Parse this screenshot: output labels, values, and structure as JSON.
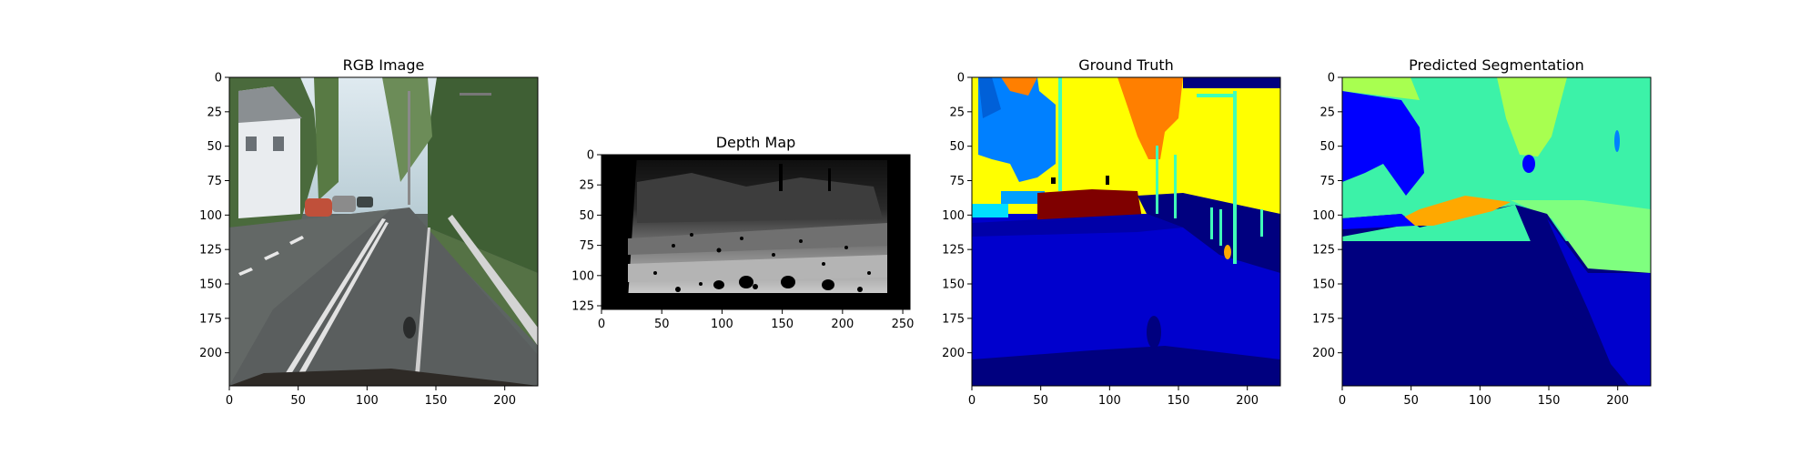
{
  "chart_data": [
    {
      "type": "image",
      "title": "RGB Image",
      "xlim": [
        0,
        224
      ],
      "ylim": [
        224,
        0
      ],
      "xticks": [
        0,
        50,
        100,
        150,
        200
      ],
      "yticks": [
        0,
        25,
        50,
        75,
        100,
        125,
        150,
        175,
        200
      ],
      "colors": {
        "sky": "#cfe0e8",
        "trees": "#4d6a3a",
        "road": "#5b5f5f",
        "building": "#e4e6e8",
        "car": "#c0503a"
      }
    },
    {
      "type": "image",
      "title": "Depth Map",
      "colormap": "gray",
      "xlim": [
        0,
        256
      ],
      "ylim": [
        128,
        0
      ],
      "xticks": [
        0,
        50,
        100,
        150,
        200,
        250
      ],
      "yticks": [
        0,
        25,
        50,
        75,
        100,
        125
      ]
    },
    {
      "type": "image",
      "title": "Ground Truth",
      "colormap": "jet",
      "xlim": [
        0,
        224
      ],
      "ylim": [
        224,
        0
      ],
      "xticks": [
        0,
        50,
        100,
        150,
        200
      ],
      "yticks": [
        0,
        25,
        50,
        75,
        100,
        125,
        150,
        175,
        200
      ],
      "colors": {
        "road": "#0000cd",
        "background": "#00007f",
        "sky": "#ffff00",
        "trees": "#0080ff",
        "building": "#ff7f00",
        "car": "#7f0000",
        "pole": "#40ffb8"
      }
    },
    {
      "type": "image",
      "title": "Predicted Segmentation",
      "colormap": "jet",
      "xlim": [
        0,
        224
      ],
      "ylim": [
        224,
        0
      ],
      "xticks": [
        0,
        50,
        100,
        150,
        200
      ],
      "yticks": [
        0,
        25,
        50,
        75,
        100,
        125,
        150,
        175,
        200
      ],
      "colors": {
        "road": "#00007f",
        "sidewalk": "#0000cd",
        "vegetation": "#3cf2a8",
        "terrain": "#7fff7f",
        "sky": "#a8ff50",
        "trees": "#0000ff",
        "car": "#ffa800"
      }
    }
  ]
}
